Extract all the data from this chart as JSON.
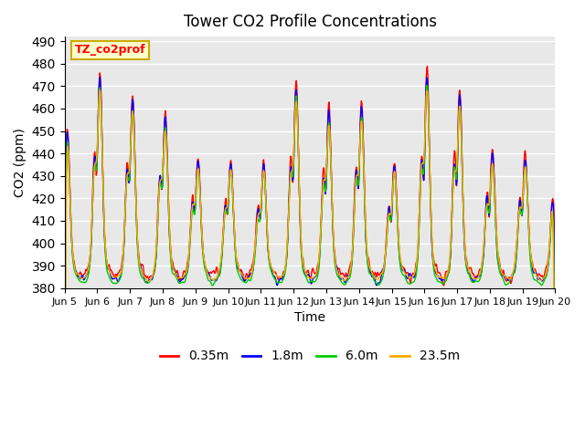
{
  "title": "Tower CO2 Profile Concentrations",
  "xlabel": "Time",
  "ylabel": "CO2 (ppm)",
  "legend_label": "TZ_co2prof",
  "series_labels": [
    "0.35m",
    "1.8m",
    "6.0m",
    "23.5m"
  ],
  "series_colors": [
    "#ff0000",
    "#0000ff",
    "#00cc00",
    "#ffaa00"
  ],
  "ylim": [
    380,
    492
  ],
  "yticks": [
    380,
    390,
    400,
    410,
    420,
    430,
    440,
    450,
    460,
    470,
    480,
    490
  ],
  "xtick_labels": [
    "Jun 5",
    "Jun 6",
    "Jun 7",
    "Jun 8",
    "Jun 9",
    "Jun 10",
    "Jun 11",
    "Jun 12",
    "Jun 13",
    "Jun 14",
    "Jun 15",
    "Jun 16",
    "Jun 17",
    "Jun 18",
    "Jun 19",
    "Jun 20"
  ],
  "bg_color": "#e8e8e8",
  "linewidth": 1.0,
  "n_points": 960,
  "n_days": 15,
  "base_co2": 393,
  "seed": 42
}
